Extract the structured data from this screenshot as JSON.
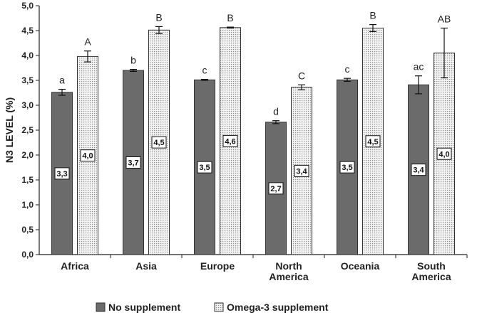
{
  "chart_data": {
    "type": "bar",
    "title": "",
    "xlabel": "",
    "ylabel": "N3 LEVEL (%)",
    "ylim": [
      0,
      5
    ],
    "yticks": [
      "0,0",
      "0,5",
      "1,0",
      "1,5",
      "2,0",
      "2,5",
      "3,0",
      "3,5",
      "4,0",
      "4,5",
      "5,0"
    ],
    "categories": [
      [
        "Africa"
      ],
      [
        "Asia"
      ],
      [
        "Europe"
      ],
      [
        "North",
        "America"
      ],
      [
        "Oceania"
      ],
      [
        "South",
        "America"
      ]
    ],
    "series": [
      {
        "name": "No supplement",
        "color": "#6b6b6b",
        "values": [
          3.26,
          3.7,
          3.51,
          2.66,
          3.51,
          3.41
        ],
        "errors": [
          0.06,
          0.02,
          0.01,
          0.03,
          0.03,
          0.18
        ],
        "value_labels": [
          "3,3",
          "3,7",
          "3,5",
          "2,7",
          "3,5",
          "3,4"
        ],
        "sig_letters": [
          "a",
          "b",
          "c",
          "d",
          "c",
          "ac"
        ]
      },
      {
        "name": "Omega-3 supplement",
        "color": "#d4d4d4",
        "values": [
          3.98,
          4.51,
          4.56,
          3.36,
          4.55,
          4.05
        ],
        "errors": [
          0.11,
          0.07,
          0.01,
          0.05,
          0.07,
          0.5
        ],
        "value_labels": [
          "4,0",
          "4,5",
          "4,6",
          "3,4",
          "4,5",
          "4,0"
        ],
        "sig_letters": [
          "A",
          "B",
          "B",
          "C",
          "B",
          "AB"
        ]
      }
    ],
    "legend": {
      "position": "bottom"
    }
  }
}
